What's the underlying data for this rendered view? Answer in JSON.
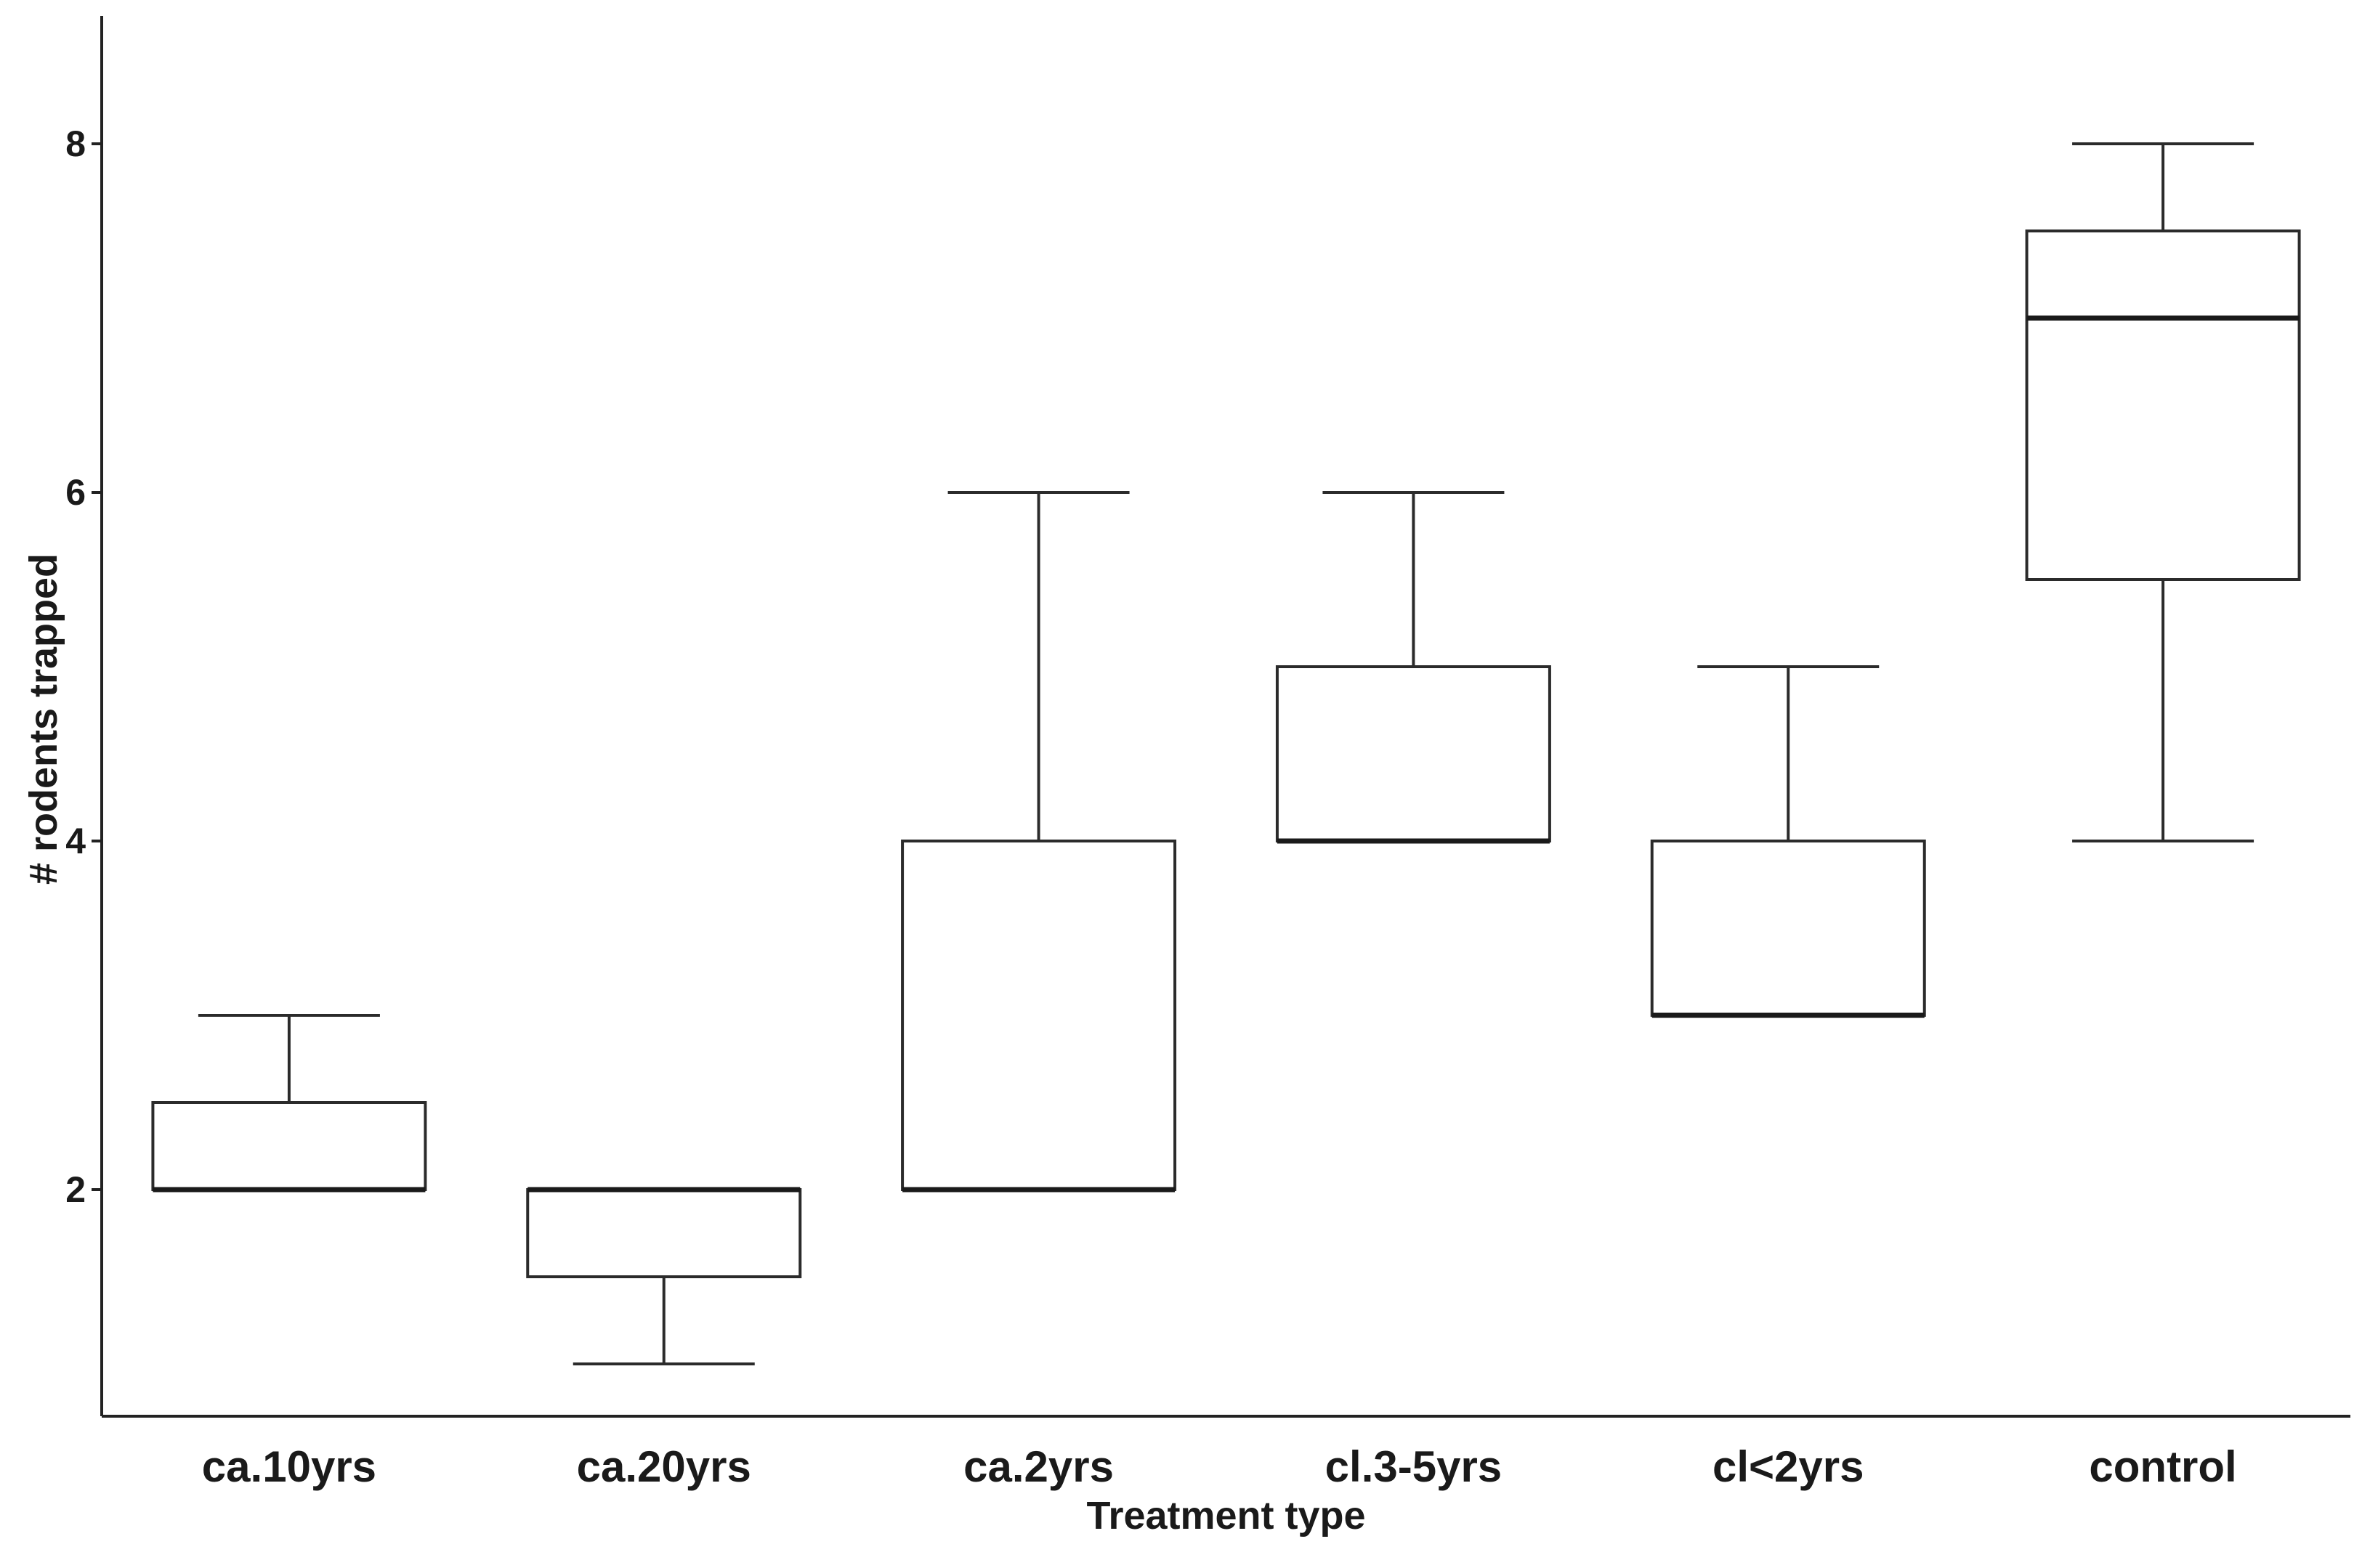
{
  "chart_data": {
    "type": "box",
    "xlabel": "Treatment type",
    "ylabel": "# rodents trapped",
    "ylim": [
      0.7,
      8.7
    ],
    "yticks": [
      2,
      4,
      6,
      8
    ],
    "grid": false,
    "colors": {
      "stroke": "#2b2b2b",
      "fill": "#ffffff"
    },
    "categories": [
      "ca.10yrs",
      "ca.20yrs",
      "ca.2yrs",
      "cl.3-5yrs",
      "cl<2yrs",
      "control"
    ],
    "boxes": [
      {
        "category": "ca.10yrs",
        "min": 2,
        "q1": 2,
        "median": 2,
        "q3": 2.5,
        "max": 3
      },
      {
        "category": "ca.20yrs",
        "min": 1,
        "q1": 1.5,
        "median": 2,
        "q3": 2,
        "max": 2
      },
      {
        "category": "ca.2yrs",
        "min": 2,
        "q1": 2,
        "median": 2,
        "q3": 4,
        "max": 6
      },
      {
        "category": "cl.3-5yrs",
        "min": 4,
        "q1": 4,
        "median": 4,
        "q3": 5,
        "max": 6
      },
      {
        "category": "cl<2yrs",
        "min": 3,
        "q1": 3,
        "median": 3,
        "q3": 4,
        "max": 5
      },
      {
        "category": "control",
        "min": 4,
        "q1": 5.5,
        "median": 7,
        "q3": 7.5,
        "max": 8
      }
    ]
  }
}
